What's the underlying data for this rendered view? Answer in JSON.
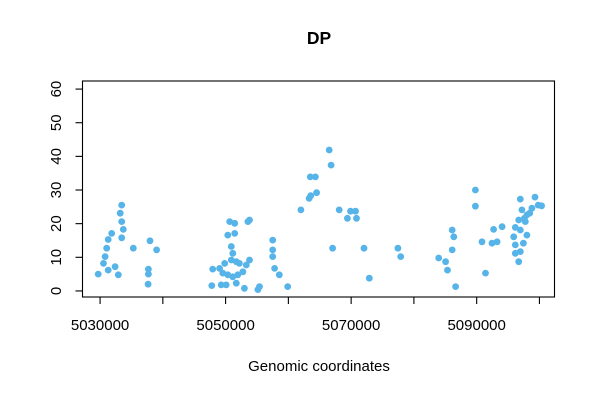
{
  "page": {
    "background": "#ffffff"
  },
  "chart_data": {
    "type": "scatter",
    "title": "DP",
    "xlabel": "Genomic coordinates",
    "ylabel": "",
    "point_color": "#56B4E9",
    "axis_color": "#000000",
    "grid": false,
    "legend": null,
    "xlim": [
      5027200,
      5102400
    ],
    "ylim": [
      -1.8,
      62.4
    ],
    "xticks": [
      5030000,
      5040000,
      5050000,
      5060000,
      5070000,
      5080000,
      5090000,
      5100000
    ],
    "xtick_labels": [
      "5030000",
      "",
      "5050000",
      "",
      "5070000",
      "",
      "5090000",
      ""
    ],
    "yticks": [
      0,
      10,
      20,
      30,
      40,
      50,
      60
    ],
    "ytick_labels": [
      "0",
      "10",
      "20",
      "30",
      "40",
      "50",
      "60"
    ],
    "points": [
      [
        5029700,
        5.0
      ],
      [
        5030550,
        8.2
      ],
      [
        5030800,
        10.2
      ],
      [
        5031050,
        12.7
      ],
      [
        5031300,
        15.3
      ],
      [
        5031850,
        17.1
      ],
      [
        5031300,
        6.2
      ],
      [
        5032400,
        7.2
      ],
      [
        5032900,
        4.8
      ],
      [
        5033200,
        23.1
      ],
      [
        5033450,
        25.5
      ],
      [
        5033450,
        20.6
      ],
      [
        5033700,
        18.3
      ],
      [
        5033450,
        15.8
      ],
      [
        5035300,
        12.7
      ],
      [
        5037950,
        14.9
      ],
      [
        5039000,
        12.2
      ],
      [
        5037700,
        6.5
      ],
      [
        5037700,
        5.0
      ],
      [
        5037650,
        2.0
      ],
      [
        5047950,
        6.5
      ],
      [
        5047800,
        1.6
      ],
      [
        5049050,
        6.7
      ],
      [
        5049300,
        1.8
      ],
      [
        5049550,
        5.3
      ],
      [
        5049850,
        8.2
      ],
      [
        5050100,
        1.8
      ],
      [
        5050350,
        16.6
      ],
      [
        5050350,
        4.8
      ],
      [
        5050650,
        20.6
      ],
      [
        5050900,
        13.2
      ],
      [
        5050900,
        9.2
      ],
      [
        5051150,
        11.2
      ],
      [
        5051150,
        4.2
      ],
      [
        5051450,
        20.1
      ],
      [
        5051450,
        17.1
      ],
      [
        5051700,
        8.7
      ],
      [
        5051700,
        2.3
      ],
      [
        5051950,
        4.8
      ],
      [
        5052200,
        8.2
      ],
      [
        5052750,
        5.7
      ],
      [
        5053000,
        0.8
      ],
      [
        5053300,
        7.7
      ],
      [
        5053550,
        20.6
      ],
      [
        5053800,
        21.1
      ],
      [
        5053800,
        9.2
      ],
      [
        5055150,
        0.4
      ],
      [
        5055400,
        1.3
      ],
      [
        5057500,
        15.1
      ],
      [
        5057500,
        12.2
      ],
      [
        5057500,
        10.2
      ],
      [
        5057800,
        6.7
      ],
      [
        5058550,
        4.8
      ],
      [
        5059900,
        1.3
      ],
      [
        5062000,
        24.1
      ],
      [
        5063300,
        27.5
      ],
      [
        5063550,
        28.3
      ],
      [
        5064500,
        29.2
      ],
      [
        5063500,
        33.9
      ],
      [
        5064300,
        33.9
      ],
      [
        5066500,
        41.9
      ],
      [
        5066800,
        37.4
      ],
      [
        5067050,
        12.7
      ],
      [
        5068100,
        24.1
      ],
      [
        5069400,
        21.6
      ],
      [
        5069900,
        23.7
      ],
      [
        5070700,
        23.7
      ],
      [
        5070850,
        21.6
      ],
      [
        5072050,
        12.7
      ],
      [
        5072900,
        3.8
      ],
      [
        5077450,
        12.7
      ],
      [
        5077900,
        10.2
      ],
      [
        5083950,
        9.8
      ],
      [
        5085050,
        8.7
      ],
      [
        5085350,
        6.2
      ],
      [
        5086100,
        18.1
      ],
      [
        5086350,
        16.1
      ],
      [
        5086100,
        12.2
      ],
      [
        5086650,
        1.3
      ],
      [
        5089800,
        30.0
      ],
      [
        5089800,
        25.2
      ],
      [
        5090850,
        14.6
      ],
      [
        5091400,
        5.3
      ],
      [
        5092450,
        14.2
      ],
      [
        5092700,
        18.3
      ],
      [
        5093250,
        14.6
      ],
      [
        5094050,
        19.1
      ],
      [
        5095900,
        16.1
      ],
      [
        5096150,
        18.9
      ],
      [
        5096150,
        13.7
      ],
      [
        5096150,
        11.2
      ],
      [
        5096700,
        21.1
      ],
      [
        5096700,
        8.7
      ],
      [
        5096950,
        27.3
      ],
      [
        5096950,
        18.1
      ],
      [
        5096950,
        11.7
      ],
      [
        5097200,
        24.1
      ],
      [
        5097450,
        14.2
      ],
      [
        5097600,
        21.6
      ],
      [
        5097750,
        20.6
      ],
      [
        5098000,
        22.6
      ],
      [
        5098000,
        16.6
      ],
      [
        5098450,
        23.1
      ],
      [
        5098800,
        24.6
      ],
      [
        5099300,
        27.9
      ],
      [
        5099800,
        25.5
      ],
      [
        5100350,
        25.3
      ]
    ]
  }
}
